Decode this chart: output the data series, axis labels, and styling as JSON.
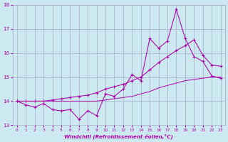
{
  "xlabel": "Windchill (Refroidissement éolien,°C)",
  "bg_color": "#cce8f0",
  "grid_color": "#aaaacc",
  "line_color": "#aa00aa",
  "xlim": [
    -0.5,
    23.5
  ],
  "ylim": [
    13,
    18
  ],
  "xticks": [
    0,
    1,
    2,
    3,
    4,
    5,
    6,
    7,
    8,
    9,
    10,
    11,
    12,
    13,
    14,
    15,
    16,
    17,
    18,
    19,
    20,
    21,
    22,
    23
  ],
  "yticks": [
    13,
    14,
    15,
    16,
    17,
    18
  ],
  "line1_x": [
    0,
    1,
    2,
    3,
    4,
    5,
    6,
    7,
    8,
    9,
    10,
    11,
    12,
    13,
    14,
    15,
    16,
    17,
    18,
    19,
    20,
    21,
    22,
    23
  ],
  "line1_y": [
    14.0,
    13.85,
    13.75,
    13.9,
    13.65,
    13.6,
    13.65,
    13.25,
    13.6,
    13.4,
    14.3,
    14.2,
    14.5,
    15.1,
    14.85,
    16.6,
    16.2,
    16.5,
    17.8,
    16.6,
    15.85,
    15.65,
    15.05,
    14.95
  ],
  "line2_x": [
    0,
    1,
    2,
    3,
    4,
    5,
    6,
    7,
    8,
    9,
    10,
    11,
    12,
    13,
    14,
    15,
    16,
    17,
    18,
    19,
    20,
    21,
    22,
    23
  ],
  "line2_y": [
    14.0,
    14.0,
    14.0,
    14.0,
    14.05,
    14.1,
    14.15,
    14.2,
    14.25,
    14.35,
    14.5,
    14.6,
    14.7,
    14.85,
    15.0,
    15.3,
    15.6,
    15.85,
    16.1,
    16.3,
    16.55,
    15.9,
    15.5,
    15.45
  ],
  "line3_x": [
    0,
    1,
    2,
    3,
    4,
    5,
    6,
    7,
    8,
    9,
    10,
    11,
    12,
    13,
    14,
    15,
    16,
    17,
    18,
    19,
    20,
    21,
    22,
    23
  ],
  "line3_y": [
    14.0,
    14.0,
    14.0,
    14.0,
    14.0,
    14.0,
    14.0,
    14.0,
    14.0,
    14.0,
    14.05,
    14.1,
    14.15,
    14.2,
    14.3,
    14.4,
    14.55,
    14.65,
    14.75,
    14.85,
    14.9,
    14.95,
    15.0,
    15.0
  ]
}
